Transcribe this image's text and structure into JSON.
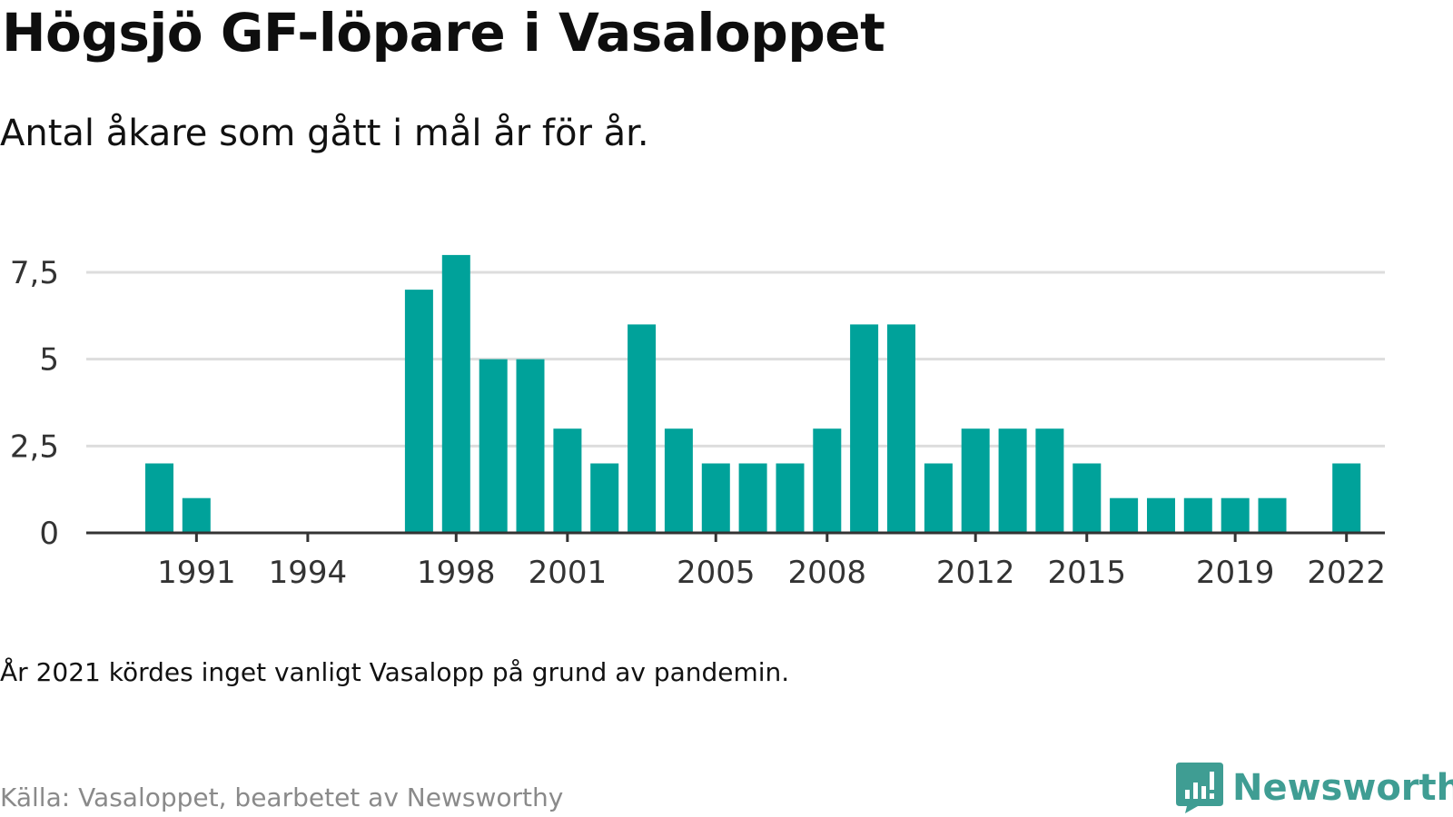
{
  "title": "Högsjö GF-löpare i Vasaloppet",
  "subtitle": "Antal åkare som gått i mål år för år.",
  "note": "År 2021 kördes inget vanligt Vasalopp på grund av pandemin.",
  "source": "Källa: Vasaloppet, bearbetet av Newsworthy",
  "brand": {
    "name": "Newsworthy",
    "icon": "newsworthy-logo-icon",
    "color": "#3f9d93"
  },
  "colors": {
    "bar": "#00a29a",
    "grid": "#dddddd",
    "axis": "#333333"
  },
  "chart_data": {
    "type": "bar",
    "categories": [
      "1990",
      "1991",
      "1992",
      "1993",
      "1994",
      "1995",
      "1996",
      "1997",
      "1998",
      "1999",
      "2000",
      "2001",
      "2002",
      "2003",
      "2004",
      "2005",
      "2006",
      "2007",
      "2008",
      "2009",
      "2010",
      "2011",
      "2012",
      "2013",
      "2014",
      "2015",
      "2016",
      "2017",
      "2018",
      "2019",
      "2020",
      "2021",
      "2022"
    ],
    "values": [
      2,
      1,
      0,
      0,
      0,
      0,
      0,
      7,
      8,
      5,
      5,
      3,
      2,
      6,
      3,
      2,
      2,
      2,
      3,
      6,
      6,
      2,
      3,
      3,
      3,
      2,
      1,
      1,
      1,
      1,
      1,
      0,
      2
    ],
    "xticks": [
      "1991",
      "1994",
      "1998",
      "2001",
      "2005",
      "2008",
      "2012",
      "2015",
      "2019",
      "2022"
    ],
    "yticks": [
      {
        "value": 0,
        "label": "0"
      },
      {
        "value": 2.5,
        "label": "2,5"
      },
      {
        "value": 5,
        "label": "5"
      },
      {
        "value": 7.5,
        "label": "7,5"
      }
    ],
    "ylim": [
      0,
      8
    ],
    "grid": true
  }
}
